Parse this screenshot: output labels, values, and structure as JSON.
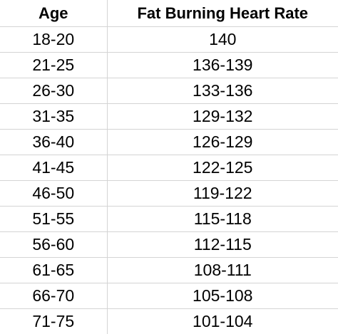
{
  "table": {
    "headers": {
      "age": "Age",
      "rate": "Fat Burning Heart Rate"
    },
    "rows": [
      {
        "age": "18-20",
        "rate": "140"
      },
      {
        "age": "21-25",
        "rate": "136-139"
      },
      {
        "age": "26-30",
        "rate": "133-136"
      },
      {
        "age": "31-35",
        "rate": "129-132"
      },
      {
        "age": "36-40",
        "rate": "126-129"
      },
      {
        "age": "41-45",
        "rate": "122-125"
      },
      {
        "age": "46-50",
        "rate": "119-122"
      },
      {
        "age": "51-55",
        "rate": "115-118"
      },
      {
        "age": "56-60",
        "rate": "112-115"
      },
      {
        "age": "61-65",
        "rate": "108-111"
      },
      {
        "age": "66-70",
        "rate": "105-108"
      },
      {
        "age": "71-75",
        "rate": "101-104"
      }
    ]
  },
  "colors": {
    "text": "#000000",
    "gridline": "#d4d4d4",
    "background": "#ffffff"
  }
}
